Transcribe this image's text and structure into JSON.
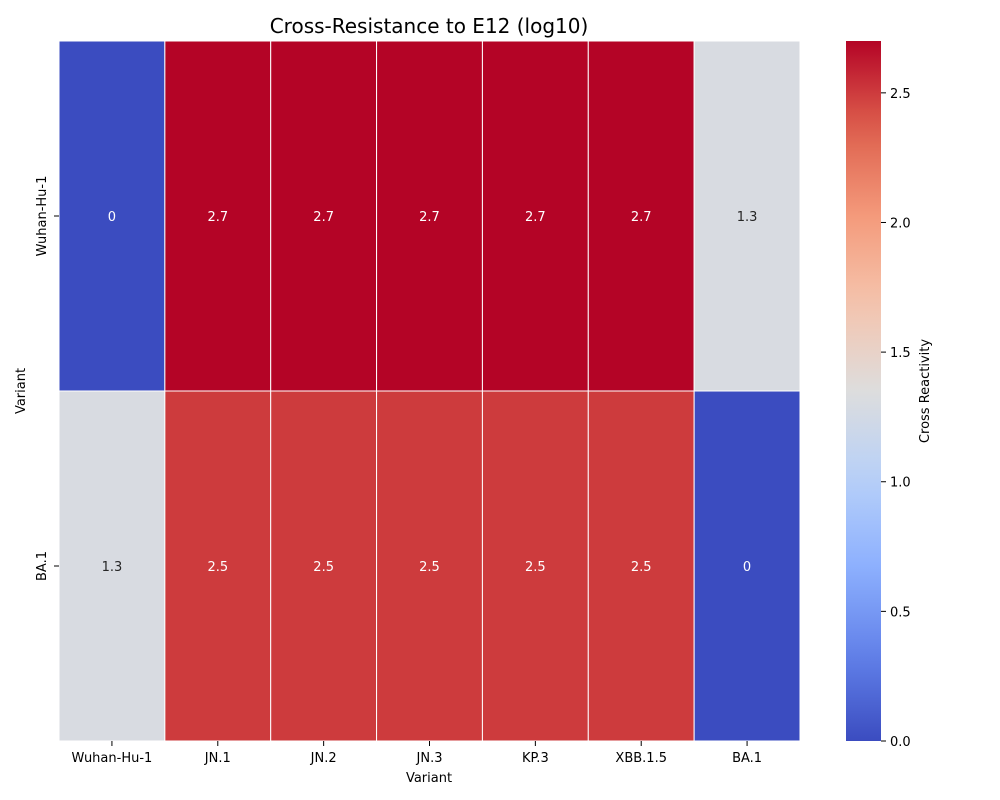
{
  "chart_data": {
    "type": "heatmap",
    "title": "Cross-Resistance to E12 (log10)",
    "xlabel": "Variant",
    "ylabel": "Variant",
    "columns": [
      "Wuhan-Hu-1",
      "JN.1",
      "JN.2",
      "JN.3",
      "KP.3",
      "XBB.1.5",
      "BA.1"
    ],
    "rows": [
      "Wuhan-Hu-1",
      "BA.1"
    ],
    "values": [
      [
        0,
        2.7,
        2.7,
        2.7,
        2.7,
        2.7,
        1.3
      ],
      [
        1.3,
        2.5,
        2.5,
        2.5,
        2.5,
        2.5,
        0
      ]
    ],
    "colorbar": {
      "label": "Cross Reactivity",
      "min": 0,
      "max": 2.7,
      "ticks": [
        0.0,
        0.5,
        1.0,
        1.5,
        2.0,
        2.5
      ],
      "tick_labels": [
        "0.0",
        "0.5",
        "1.0",
        "1.5",
        "2.0",
        "2.5"
      ],
      "colormap": "coolwarm"
    },
    "annotations": true,
    "grid": false
  }
}
